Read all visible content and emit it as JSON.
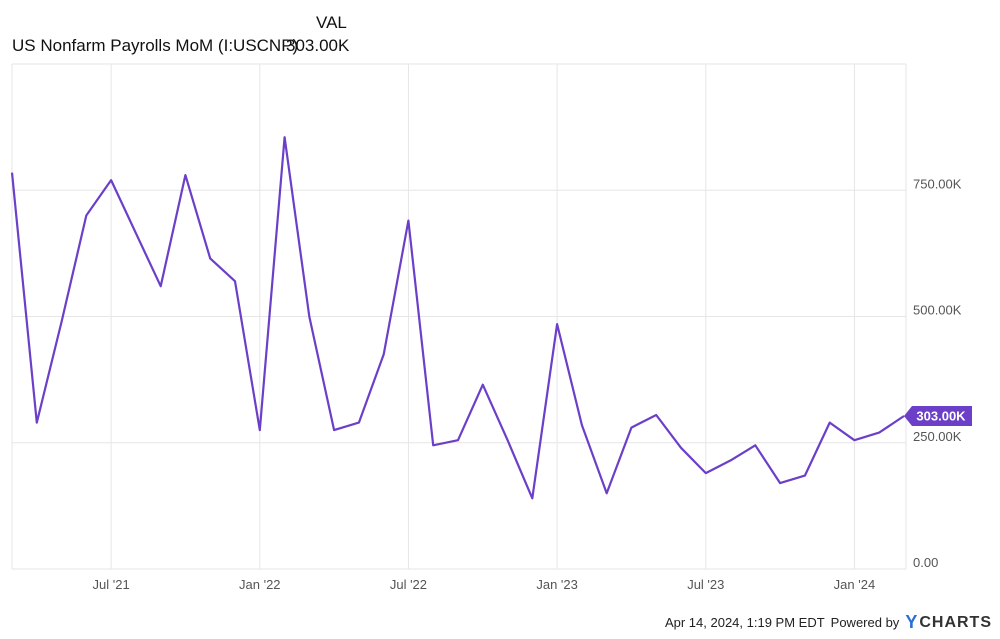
{
  "legend": {
    "header": "VAL",
    "series_name": "US Nonfarm Payrolls MoM (I:USCNP)",
    "latest_value": "303.00K"
  },
  "footer": {
    "timestamp": "Apr 14, 2024, 1:19 PM EDT",
    "powered_by": "Powered by",
    "brand_mark": "Y",
    "brand_name": "CHARTS"
  },
  "colors": {
    "line": "#6b3fc8",
    "grid": "#e6e6e6",
    "label_bg": "#6b3fc8"
  },
  "chart_data": {
    "type": "line",
    "title": "",
    "xlabel": "",
    "ylabel": "",
    "y_axis_position": "right",
    "grid": true,
    "ylim": [
      0,
      1000
    ],
    "yticks": [
      0,
      250,
      500,
      750
    ],
    "ytick_labels": [
      "0.00",
      "250.00K",
      "500.00K",
      "750.00K"
    ],
    "xtick_labels": [
      "Jul '21",
      "Jan '22",
      "Jul '22",
      "Jan '23",
      "Jul '23",
      "Jan '24"
    ],
    "xtick_positions": [
      "2021-07",
      "2022-01",
      "2022-07",
      "2023-01",
      "2023-07",
      "2024-01"
    ],
    "x": [
      "2021-03",
      "2021-04",
      "2021-05",
      "2021-06",
      "2021-07",
      "2021-08",
      "2021-09",
      "2021-10",
      "2021-11",
      "2021-12",
      "2022-01",
      "2022-02",
      "2022-03",
      "2022-04",
      "2022-05",
      "2022-06",
      "2022-07",
      "2022-08",
      "2022-09",
      "2022-10",
      "2022-11",
      "2022-12",
      "2023-01",
      "2023-02",
      "2023-03",
      "2023-04",
      "2023-05",
      "2023-06",
      "2023-07",
      "2023-08",
      "2023-09",
      "2023-10",
      "2023-11",
      "2023-12",
      "2024-01",
      "2024-02",
      "2024-03"
    ],
    "series": [
      {
        "name": "US Nonfarm Payrolls MoM (I:USCNP)",
        "values": [
          785,
          290,
          490,
          700,
          770,
          665,
          560,
          780,
          615,
          570,
          275,
          855,
          500,
          275,
          290,
          425,
          690,
          245,
          255,
          365,
          255,
          140,
          485,
          285,
          150,
          280,
          305,
          240,
          190,
          215,
          245,
          170,
          185,
          290,
          255,
          270,
          303
        ]
      }
    ],
    "last_value_label": "303.00K"
  }
}
